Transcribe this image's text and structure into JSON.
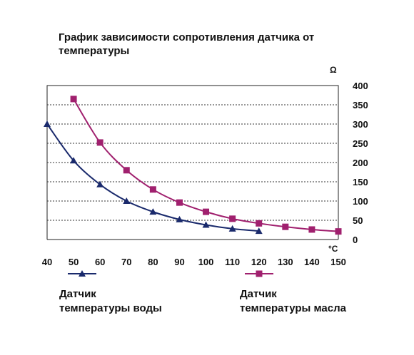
{
  "title": "График зависимости сопротивления датчика от температуры",
  "chart_data": {
    "type": "line",
    "title": "График зависимости сопротивления датчика от температуры",
    "xunit": "°C",
    "yunit": "Ω",
    "xlim": [
      40,
      150
    ],
    "ylim": [
      0,
      400
    ],
    "xticks": [
      40,
      50,
      60,
      70,
      80,
      90,
      100,
      110,
      120,
      130,
      140,
      150
    ],
    "yticks": [
      0,
      50,
      100,
      150,
      200,
      250,
      300,
      350,
      400
    ],
    "grid": true,
    "legend_position": "bottom",
    "series": [
      {
        "name": "Датчик\nтемпературы воды",
        "marker": "triangle",
        "color": "#1a2a6c",
        "x": [
          40,
          50,
          60,
          70,
          80,
          90,
          100,
          110,
          120
        ],
        "y": [
          300,
          205,
          143,
          100,
          72,
          52,
          38,
          28,
          22
        ]
      },
      {
        "name": "Датчик\nтемпературы масла",
        "marker": "square",
        "color": "#a0206e",
        "x": [
          50,
          60,
          70,
          80,
          90,
          100,
          110,
          120,
          130,
          140,
          150
        ],
        "y": [
          365,
          252,
          180,
          130,
          96,
          72,
          54,
          42,
          33,
          26,
          21
        ]
      }
    ]
  }
}
